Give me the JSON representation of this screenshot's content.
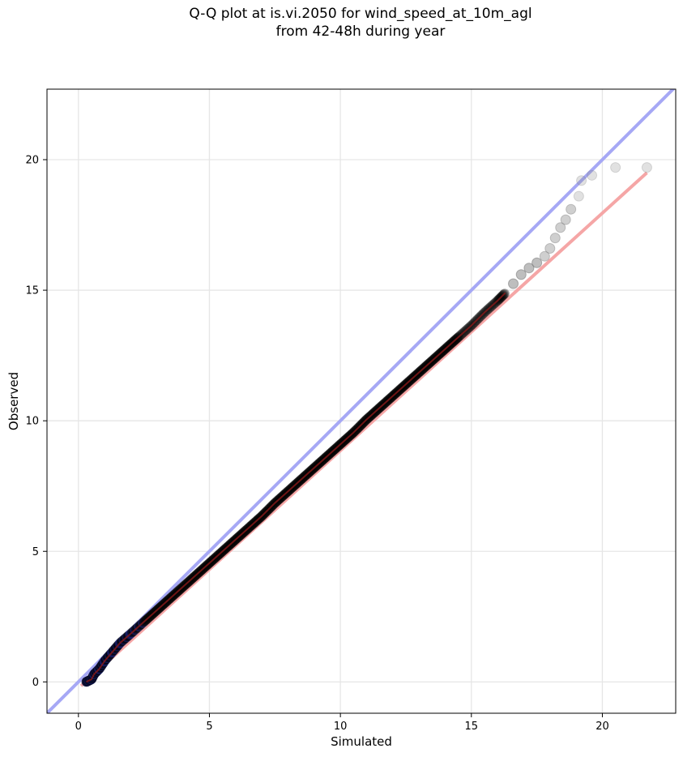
{
  "chart_data": {
    "type": "scatter",
    "title": [
      "Q-Q plot at is.vi.2050 for wind_speed_at_10m_agl",
      "from 42-48h during year"
    ],
    "xlabel": "Simulated",
    "ylabel": "Observed",
    "xlim": [
      -1.2,
      22.8
    ],
    "ylim": [
      -1.2,
      22.7
    ],
    "xticks": [
      0,
      5,
      10,
      15,
      20
    ],
    "yticks": [
      0,
      5,
      10,
      15,
      20
    ],
    "grid": true,
    "legend": "none",
    "colors": {
      "identity_line": "#a6a8f5",
      "fit_line": "#f5a6a6",
      "points": "#000000",
      "points_outlier": "#bdbdbd",
      "dense_overlay": "#8b1a1a"
    },
    "identity_line": {
      "x": [
        -1.2,
        22.8
      ],
      "y": [
        -1.2,
        22.8
      ]
    },
    "fit_line": {
      "x": [
        0.1,
        21.7
      ],
      "y": [
        -0.15,
        19.5
      ]
    },
    "series": [
      {
        "x": [
          0.3,
          0.4,
          0.5,
          0.6,
          0.8,
          1.0,
          1.3,
          1.6,
          2.0,
          2.5,
          3.0,
          3.5,
          4.0,
          4.5,
          5.0,
          5.5,
          6.0,
          6.5,
          7.0,
          7.5,
          8.0,
          8.5,
          9.0,
          9.5,
          10.0,
          10.5,
          11.0,
          11.5,
          12.0,
          12.5,
          13.0,
          13.5,
          14.0,
          14.5,
          15.0,
          15.5,
          16.0,
          16.3,
          16.6,
          16.9,
          17.2,
          17.5,
          17.8,
          18.0,
          18.2,
          18.4,
          18.6,
          18.8,
          19.1,
          19.2,
          19.6,
          20.5,
          21.7
        ],
        "y": [
          0.0,
          0.05,
          0.1,
          0.3,
          0.5,
          0.8,
          1.15,
          1.5,
          1.85,
          2.3,
          2.75,
          3.2,
          3.65,
          4.1,
          4.55,
          5.0,
          5.45,
          5.9,
          6.35,
          6.85,
          7.3,
          7.75,
          8.2,
          8.65,
          9.1,
          9.55,
          10.05,
          10.5,
          10.95,
          11.4,
          11.85,
          12.3,
          12.75,
          13.2,
          13.65,
          14.15,
          14.6,
          14.9,
          15.25,
          15.6,
          15.85,
          16.05,
          16.3,
          16.6,
          17.0,
          17.4,
          17.7,
          18.1,
          18.6,
          19.2,
          19.4,
          19.7,
          19.7
        ]
      }
    ]
  }
}
